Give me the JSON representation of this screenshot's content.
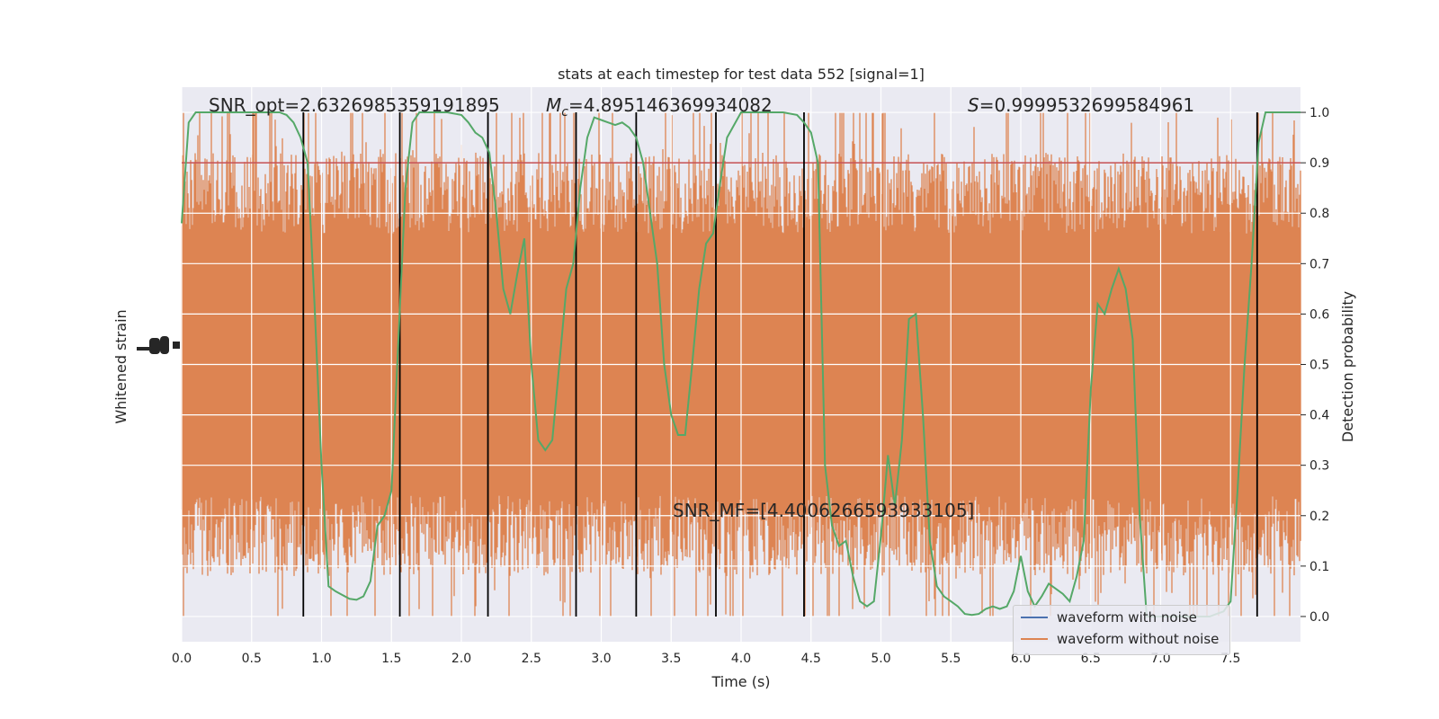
{
  "chart_data": {
    "type": "line",
    "title": "stats at each timestep for test data 552 [signal=1]",
    "xlabel": "Time (s)",
    "ylabel_left": "Whitened strain",
    "ylabel_right": "Detection probability",
    "xlim": [
      0.0,
      8.0
    ],
    "ylim_right": [
      -0.05,
      1.05
    ],
    "x_ticks": [
      "0.0",
      "0.5",
      "1.0",
      "1.5",
      "2.0",
      "2.5",
      "3.0",
      "3.5",
      "4.0",
      "4.5",
      "5.0",
      "5.5",
      "6.0",
      "6.5",
      "7.0",
      "7.5"
    ],
    "x_tick_values": [
      0.0,
      0.5,
      1.0,
      1.5,
      2.0,
      2.5,
      3.0,
      3.5,
      4.0,
      4.5,
      5.0,
      5.5,
      6.0,
      6.5,
      7.0,
      7.5
    ],
    "y_right_ticks": [
      "0.0",
      "0.1",
      "0.2",
      "0.3",
      "0.4",
      "0.5",
      "0.6",
      "0.7",
      "0.8",
      "0.9",
      "1.0"
    ],
    "y_right_tick_values": [
      0.0,
      0.1,
      0.2,
      0.3,
      0.4,
      0.5,
      0.6,
      0.7,
      0.8,
      0.9,
      1.0
    ],
    "annotations": {
      "snr_opt": "SNR_opt=2.6326985359191895",
      "mc_symbol": "M",
      "mc_sub": "c",
      "mc_value": "=4.895146369934082",
      "s_symbol": "S",
      "s_value": "=0.9999532699584961",
      "snr_mf": "SNR_MF=[4.4006266593933105]"
    },
    "threshold": 0.9,
    "detection_probability": {
      "x": [
        0.0,
        0.05,
        0.1,
        0.2,
        0.3,
        0.4,
        0.5,
        0.6,
        0.7,
        0.75,
        0.8,
        0.85,
        0.9,
        0.95,
        1.0,
        1.05,
        1.1,
        1.2,
        1.25,
        1.3,
        1.35,
        1.4,
        1.45,
        1.5,
        1.55,
        1.6,
        1.65,
        1.7,
        1.8,
        1.9,
        2.0,
        2.05,
        2.1,
        2.15,
        2.2,
        2.25,
        2.3,
        2.35,
        2.4,
        2.45,
        2.5,
        2.55,
        2.6,
        2.65,
        2.7,
        2.75,
        2.8,
        2.85,
        2.9,
        2.95,
        3.0,
        3.05,
        3.1,
        3.15,
        3.2,
        3.25,
        3.3,
        3.4,
        3.45,
        3.5,
        3.55,
        3.6,
        3.65,
        3.7,
        3.75,
        3.8,
        3.85,
        3.9,
        4.0,
        4.1,
        4.2,
        4.3,
        4.4,
        4.45,
        4.5,
        4.55,
        4.6,
        4.65,
        4.7,
        4.75,
        4.8,
        4.85,
        4.9,
        4.95,
        5.0,
        5.05,
        5.1,
        5.15,
        5.2,
        5.25,
        5.3,
        5.35,
        5.4,
        5.45,
        5.5,
        5.55,
        5.6,
        5.65,
        5.7,
        5.75,
        5.8,
        5.85,
        5.9,
        5.95,
        6.0,
        6.05,
        6.1,
        6.15,
        6.2,
        6.25,
        6.3,
        6.35,
        6.4,
        6.45,
        6.5,
        6.55,
        6.6,
        6.65,
        6.7,
        6.75,
        6.8,
        6.85,
        6.9,
        6.95,
        7.0,
        7.05,
        7.1,
        7.15,
        7.2,
        7.25,
        7.3,
        7.35,
        7.4,
        7.45,
        7.5,
        7.55,
        7.6,
        7.65,
        7.7,
        7.75,
        7.8,
        7.85,
        7.9,
        7.95,
        8.0
      ],
      "y": [
        0.78,
        0.98,
        1.0,
        1.0,
        1.0,
        1.0,
        1.0,
        1.0,
        1.0,
        0.995,
        0.98,
        0.95,
        0.9,
        0.62,
        0.3,
        0.06,
        0.05,
        0.035,
        0.033,
        0.04,
        0.07,
        0.18,
        0.2,
        0.25,
        0.55,
        0.85,
        0.98,
        1.0,
        1.0,
        1.0,
        0.995,
        0.98,
        0.96,
        0.95,
        0.92,
        0.8,
        0.65,
        0.6,
        0.68,
        0.75,
        0.5,
        0.35,
        0.33,
        0.35,
        0.5,
        0.65,
        0.7,
        0.85,
        0.95,
        0.99,
        0.985,
        0.98,
        0.975,
        0.98,
        0.97,
        0.95,
        0.9,
        0.7,
        0.5,
        0.4,
        0.36,
        0.36,
        0.5,
        0.65,
        0.74,
        0.76,
        0.86,
        0.95,
        1.0,
        1.0,
        1.0,
        1.0,
        0.995,
        0.98,
        0.96,
        0.9,
        0.3,
        0.18,
        0.14,
        0.15,
        0.08,
        0.03,
        0.02,
        0.03,
        0.16,
        0.32,
        0.22,
        0.35,
        0.59,
        0.6,
        0.4,
        0.15,
        0.06,
        0.04,
        0.03,
        0.02,
        0.005,
        0.003,
        0.005,
        0.015,
        0.02,
        0.015,
        0.02,
        0.05,
        0.12,
        0.05,
        0.02,
        0.04,
        0.065,
        0.055,
        0.045,
        0.03,
        0.08,
        0.15,
        0.45,
        0.62,
        0.6,
        0.65,
        0.69,
        0.65,
        0.55,
        0.2,
        0.0,
        0.0,
        0.0,
        0.0,
        0.0,
        0.0,
        0.0,
        0.0,
        0.0,
        0.0,
        0.005,
        0.01,
        0.03,
        0.25,
        0.5,
        0.7,
        0.94,
        1.0,
        1.0,
        1.0,
        1.0,
        1.0,
        1.0
      ]
    },
    "segment_boundaries": [
      0.87,
      1.56,
      2.19,
      2.82,
      3.25,
      3.82,
      4.45,
      7.69
    ],
    "series": [
      {
        "name": "waveform with noise",
        "color": "#4c72b0"
      },
      {
        "name": "waveform without noise",
        "color": "#dd8452"
      }
    ],
    "colors": {
      "noise_band": "#dd8452",
      "probability": "#55a868",
      "threshold": "#c44e52",
      "boundary": "#000000",
      "axes_bg": "#eaeaf2",
      "grid": "#ffffff"
    }
  }
}
